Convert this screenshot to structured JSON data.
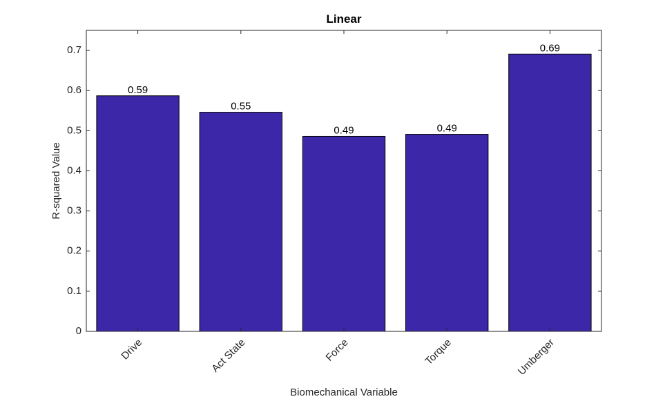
{
  "chart_data": {
    "type": "bar",
    "title": "Linear",
    "xlabel": "Biomechanical Variable",
    "ylabel": "R-squared Value",
    "categories": [
      "Drive",
      "Act State",
      "Force",
      "Torque",
      "Umberger"
    ],
    "values": [
      0.587,
      0.546,
      0.486,
      0.491,
      0.691
    ],
    "value_labels": [
      "0.59",
      "0.55",
      "0.49",
      "0.49",
      "0.69"
    ],
    "ylim": [
      0,
      0.75
    ],
    "yticks": [
      0,
      0.1,
      0.2,
      0.3,
      0.4,
      0.5,
      0.6,
      0.7
    ],
    "ytick_labels": [
      "0",
      "0.1",
      "0.2",
      "0.3",
      "0.4",
      "0.5",
      "0.6",
      "0.7"
    ],
    "grid": false,
    "bar_color": "#3c27a9",
    "bar_edge_color": "#000000"
  }
}
